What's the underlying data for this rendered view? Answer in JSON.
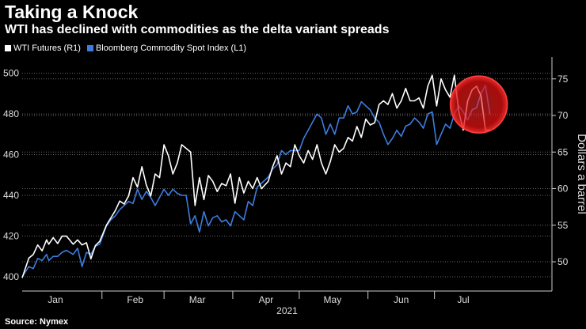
{
  "chart_data": {
    "type": "line",
    "title": "Taking a Knock",
    "subtitle": "WTI has declined with commodities as the delta variant spreads",
    "source": "Source: Nymex",
    "year_label": "2021",
    "left_axis": {
      "ticks": [
        400,
        420,
        440,
        460,
        480,
        500
      ],
      "range": [
        393,
        508
      ]
    },
    "right_axis": {
      "label": "Dollars a barrel",
      "ticks": [
        50,
        55,
        60,
        65,
        70,
        75
      ],
      "range": [
        46,
        78
      ]
    },
    "x_range": [
      1,
      240
    ],
    "months": [
      {
        "label": "Jan",
        "start": 1,
        "center": 16
      },
      {
        "label": "Feb",
        "start": 37,
        "center": 52
      },
      {
        "label": "Mar",
        "start": 65,
        "center": 80
      },
      {
        "label": "Apr",
        "start": 96,
        "center": 111
      },
      {
        "label": "May",
        "start": 126,
        "center": 141
      },
      {
        "label": "Jun",
        "start": 157,
        "center": 172
      },
      {
        "label": "Jul",
        "start": 187,
        "center": 200
      }
    ],
    "series": [
      {
        "name": "WTI Futures (R1)",
        "axis": "right",
        "color": "#ffffff",
        "x": [
          1,
          4,
          6,
          8,
          10,
          12,
          13,
          15,
          17,
          19,
          21,
          24,
          26,
          28,
          30,
          32,
          34,
          36,
          39,
          41,
          43,
          45,
          47,
          49,
          51,
          53,
          55,
          57,
          59,
          61,
          63,
          65,
          67,
          69,
          71,
          73,
          75,
          77,
          79,
          81,
          83,
          85,
          87,
          89,
          91,
          93,
          95,
          97,
          99,
          101,
          103,
          105,
          107,
          109,
          112,
          114,
          116,
          118,
          120,
          122,
          124,
          126,
          128,
          130,
          132,
          134,
          136,
          138,
          140,
          142,
          144,
          146,
          148,
          150,
          152,
          154,
          156,
          158,
          160,
          162,
          164,
          166,
          168,
          170,
          172,
          174,
          176,
          178,
          180,
          182,
          184,
          186,
          188,
          190,
          192,
          194,
          196,
          198,
          200,
          202,
          204,
          206,
          208,
          210,
          212
        ],
        "values": [
          47.8,
          50.5,
          51.0,
          52.3,
          51.5,
          53.0,
          52.4,
          53.3,
          52.5,
          53.5,
          53.5,
          52.4,
          53.0,
          52.3,
          52.6,
          50.4,
          52.2,
          52.8,
          55.0,
          56.0,
          57.0,
          58.3,
          57.9,
          59.0,
          61.5,
          60.2,
          63.0,
          60.5,
          59.0,
          62.0,
          61.5,
          66.0,
          64.5,
          62.0,
          63.5,
          66.0,
          65.5,
          65.0,
          57.7,
          61.5,
          58.5,
          61.8,
          61.0,
          59.6,
          60.7,
          60.4,
          62.0,
          58.0,
          61.5,
          59.4,
          61.0,
          60.0,
          61.5,
          60.0,
          61.0,
          63.0,
          64.5,
          62.0,
          63.5,
          63.0,
          66.0,
          64.5,
          63.5,
          65.2,
          64.0,
          66.0,
          63.5,
          62.0,
          63.7,
          66.0,
          65.0,
          65.5,
          67.0,
          66.5,
          68.5,
          67.0,
          69.5,
          68.7,
          69.0,
          71.5,
          72.0,
          71.5,
          73.0,
          71.0,
          72.0,
          73.7,
          72.0,
          72.0,
          72.4,
          71.0,
          74.0,
          75.5,
          71.3,
          75.0,
          73.5,
          72.5,
          75.5,
          70.5,
          68.0,
          72.0,
          73.5,
          74.0,
          72.7,
          68.0,
          68.0
        ]
      },
      {
        "name": "Bloomberg Commodity Spot Index (L1)",
        "axis": "left",
        "color": "#3d7de0",
        "x": [
          1,
          4,
          6,
          8,
          10,
          12,
          13,
          15,
          17,
          19,
          21,
          24,
          26,
          28,
          30,
          32,
          34,
          36,
          39,
          41,
          43,
          45,
          47,
          49,
          51,
          53,
          55,
          57,
          59,
          61,
          63,
          65,
          67,
          69,
          71,
          73,
          75,
          77,
          79,
          81,
          83,
          85,
          87,
          89,
          91,
          93,
          95,
          97,
          99,
          101,
          103,
          105,
          107,
          109,
          112,
          114,
          116,
          118,
          120,
          122,
          124,
          126,
          128,
          130,
          132,
          134,
          136,
          138,
          140,
          142,
          144,
          146,
          148,
          150,
          152,
          154,
          156,
          158,
          160,
          162,
          164,
          166,
          168,
          170,
          172,
          174,
          176,
          178,
          180,
          182,
          184,
          186,
          188,
          190,
          192,
          194,
          196,
          198,
          200,
          202,
          204,
          206,
          208,
          210,
          212
        ],
        "values": [
          400,
          405,
          404,
          409,
          408,
          411,
          408,
          410,
          410,
          412,
          413,
          411,
          414,
          405,
          412,
          411,
          415,
          416,
          425,
          428,
          430,
          433,
          435,
          437,
          436,
          443,
          438,
          442,
          439,
          435,
          439,
          443,
          440,
          443,
          441,
          440,
          440,
          426,
          430,
          422,
          432,
          425,
          429,
          430,
          427,
          428,
          425,
          432,
          430,
          428,
          437,
          435,
          444,
          446,
          449,
          453,
          455,
          462,
          460,
          462,
          462,
          462,
          468,
          472,
          476,
          480,
          478,
          470,
          475,
          470,
          478,
          478,
          484,
          480,
          481,
          486,
          484,
          482,
          478,
          476,
          470,
          465,
          468,
          472,
          469,
          474,
          475,
          478,
          476,
          473,
          480,
          481,
          465,
          470,
          475,
          473,
          480,
          484,
          481,
          477,
          482,
          483,
          490,
          494,
          480
        ]
      }
    ],
    "annotation": {
      "type": "highlight-circle",
      "x": 207,
      "right_value": 71.5,
      "color": "#ff1a1a"
    }
  }
}
